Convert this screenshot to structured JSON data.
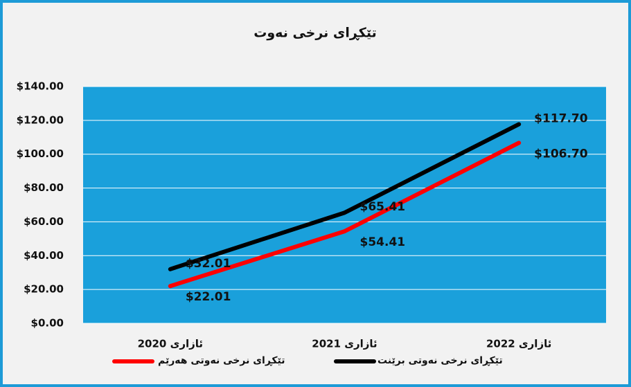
{
  "chart_data": {
    "type": "line",
    "title": "تێکڕای نرخی نەوت",
    "categories": [
      "ئازاری 2020",
      "ئازاری 2021",
      "ئازاری 2022"
    ],
    "series": [
      {
        "name": "تێکڕای نرخی نەوتی برێنت",
        "color": "#000000",
        "values": [
          32.01,
          65.41,
          117.7
        ],
        "value_labels": [
          "$32.01",
          "$65.41",
          "$117.70"
        ]
      },
      {
        "name": "تێکڕای نرخی نەوتی هەرێم",
        "color": "#ff0000",
        "values": [
          22.01,
          54.41,
          106.7
        ],
        "value_labels": [
          "$22.01",
          "$54.41",
          "$106.70"
        ]
      }
    ],
    "ylim": [
      0,
      140
    ],
    "yticks": [
      {
        "value": 0,
        "label": "$0.00"
      },
      {
        "value": 20,
        "label": "$20.00"
      },
      {
        "value": 40,
        "label": "$40.00"
      },
      {
        "value": 60,
        "label": "$60.00"
      },
      {
        "value": 80,
        "label": "$80.00"
      },
      {
        "value": 100,
        "label": "$100.00"
      },
      {
        "value": 120,
        "label": "$120.00"
      },
      {
        "value": 140,
        "label": "$140.00"
      }
    ],
    "grid": true
  }
}
